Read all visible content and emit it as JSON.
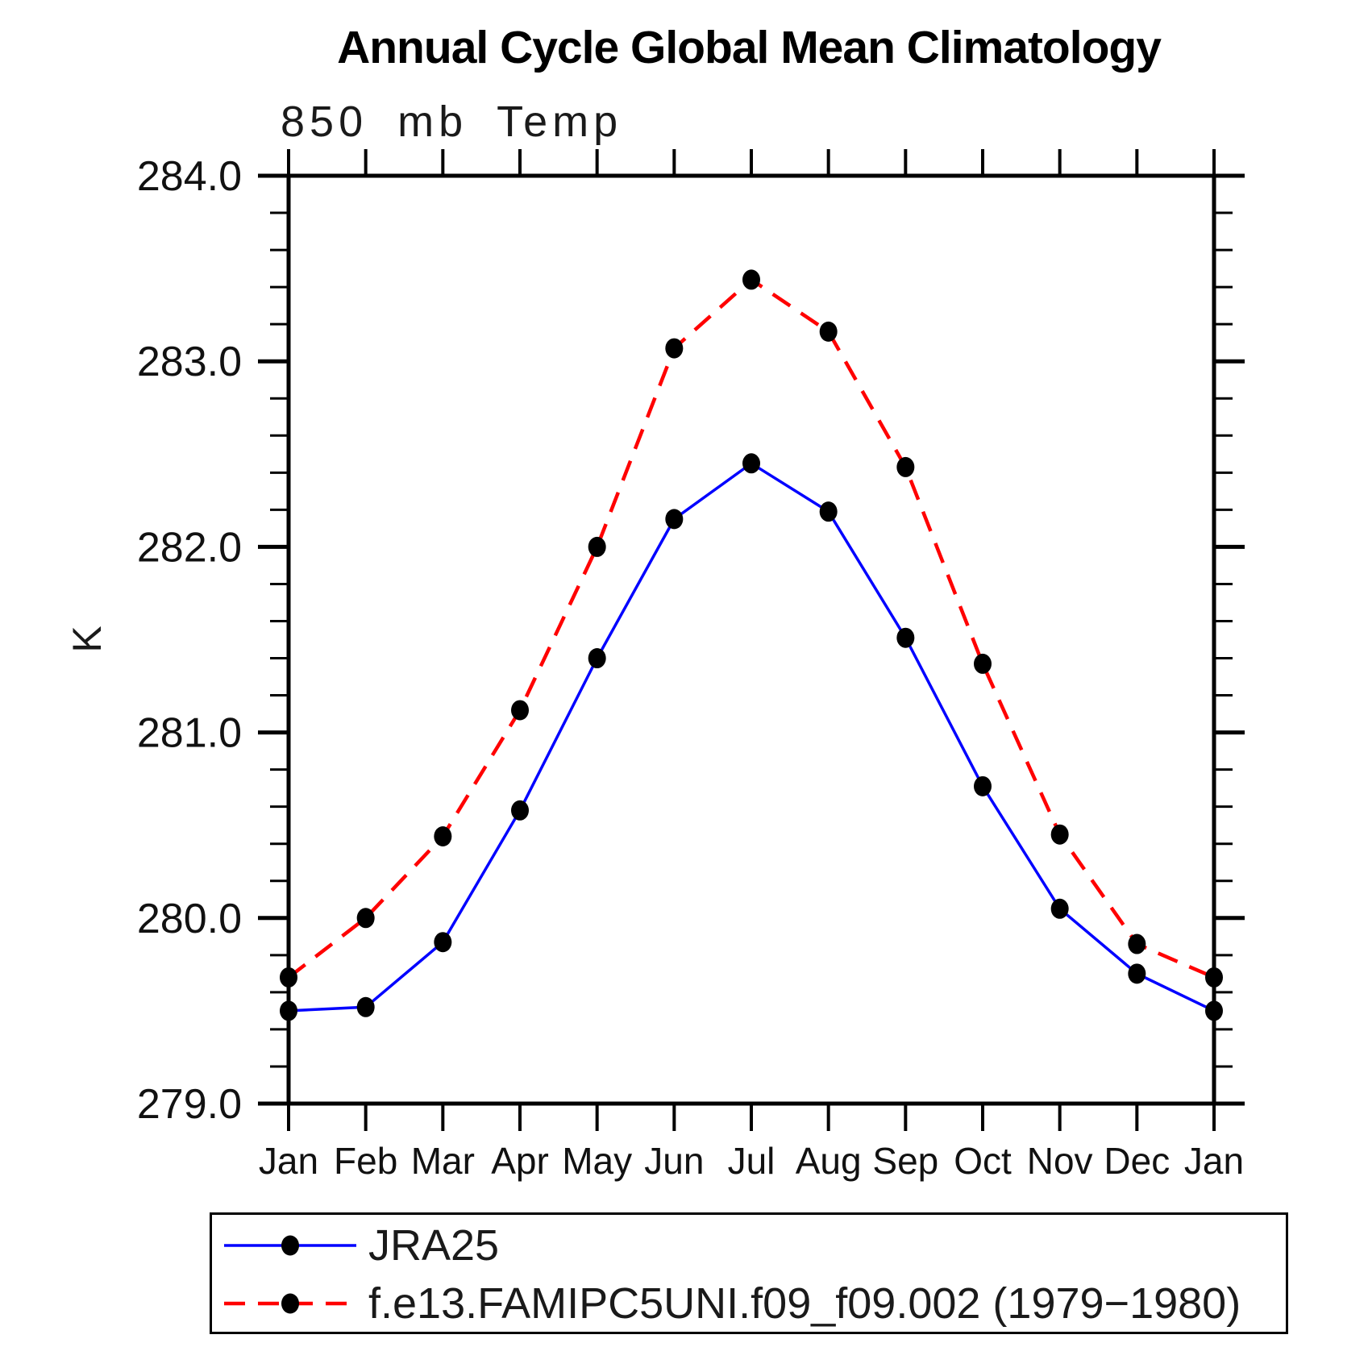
{
  "title": "Annual Cycle Global Mean Climatology",
  "subtitle": "850 mb Temp",
  "y_axis_label": "K",
  "colors": {
    "background": "#ffffff",
    "axis": "#000000",
    "text": "#111111",
    "title_text": "#000000",
    "series_jra25": "#0000ff",
    "series_model": "#ff0000",
    "marker": "#000000"
  },
  "legend": {
    "items": [
      {
        "label": "JRA25",
        "color": "#0000ff",
        "line_style": "solid",
        "marker": "black-dot"
      },
      {
        "label": "f.e13.FAMIPC5UNI.f09_f09.002 (1979−1980)",
        "color": "#ff0000",
        "line_style": "dashed",
        "marker": "black-dot"
      }
    ]
  },
  "chart_data": {
    "type": "line",
    "title": "Annual Cycle Global Mean Climatology",
    "subtitle": "850 mb Temp",
    "xlabel": "",
    "ylabel": "K",
    "categories": [
      "Jan",
      "Feb",
      "Mar",
      "Apr",
      "May",
      "Jun",
      "Jul",
      "Aug",
      "Sep",
      "Oct",
      "Nov",
      "Dec",
      "Jan"
    ],
    "ylim": [
      279.0,
      284.0
    ],
    "ytick_major_interval": 1.0,
    "ytick_minor_interval": 0.2,
    "ytick_labels": [
      "279.0",
      "280.0",
      "281.0",
      "282.0",
      "283.0",
      "284.0"
    ],
    "grid": false,
    "legend_position": "bottom-left-box",
    "series": [
      {
        "name": "JRA25",
        "color": "#0000ff",
        "line_style": "solid",
        "marker": "circle",
        "marker_color": "#000000",
        "values": [
          279.5,
          279.52,
          279.87,
          280.58,
          281.4,
          282.15,
          282.45,
          282.19,
          281.51,
          280.71,
          280.05,
          279.7,
          279.5
        ]
      },
      {
        "name": "f.e13.FAMIPC5UNI.f09_f09.002 (1979−1980)",
        "color": "#ff0000",
        "line_style": "dashed",
        "marker": "circle",
        "marker_color": "#000000",
        "values": [
          279.68,
          280.0,
          280.44,
          281.12,
          282.0,
          283.07,
          283.44,
          283.16,
          282.43,
          281.37,
          280.45,
          279.86,
          279.68
        ]
      }
    ]
  }
}
